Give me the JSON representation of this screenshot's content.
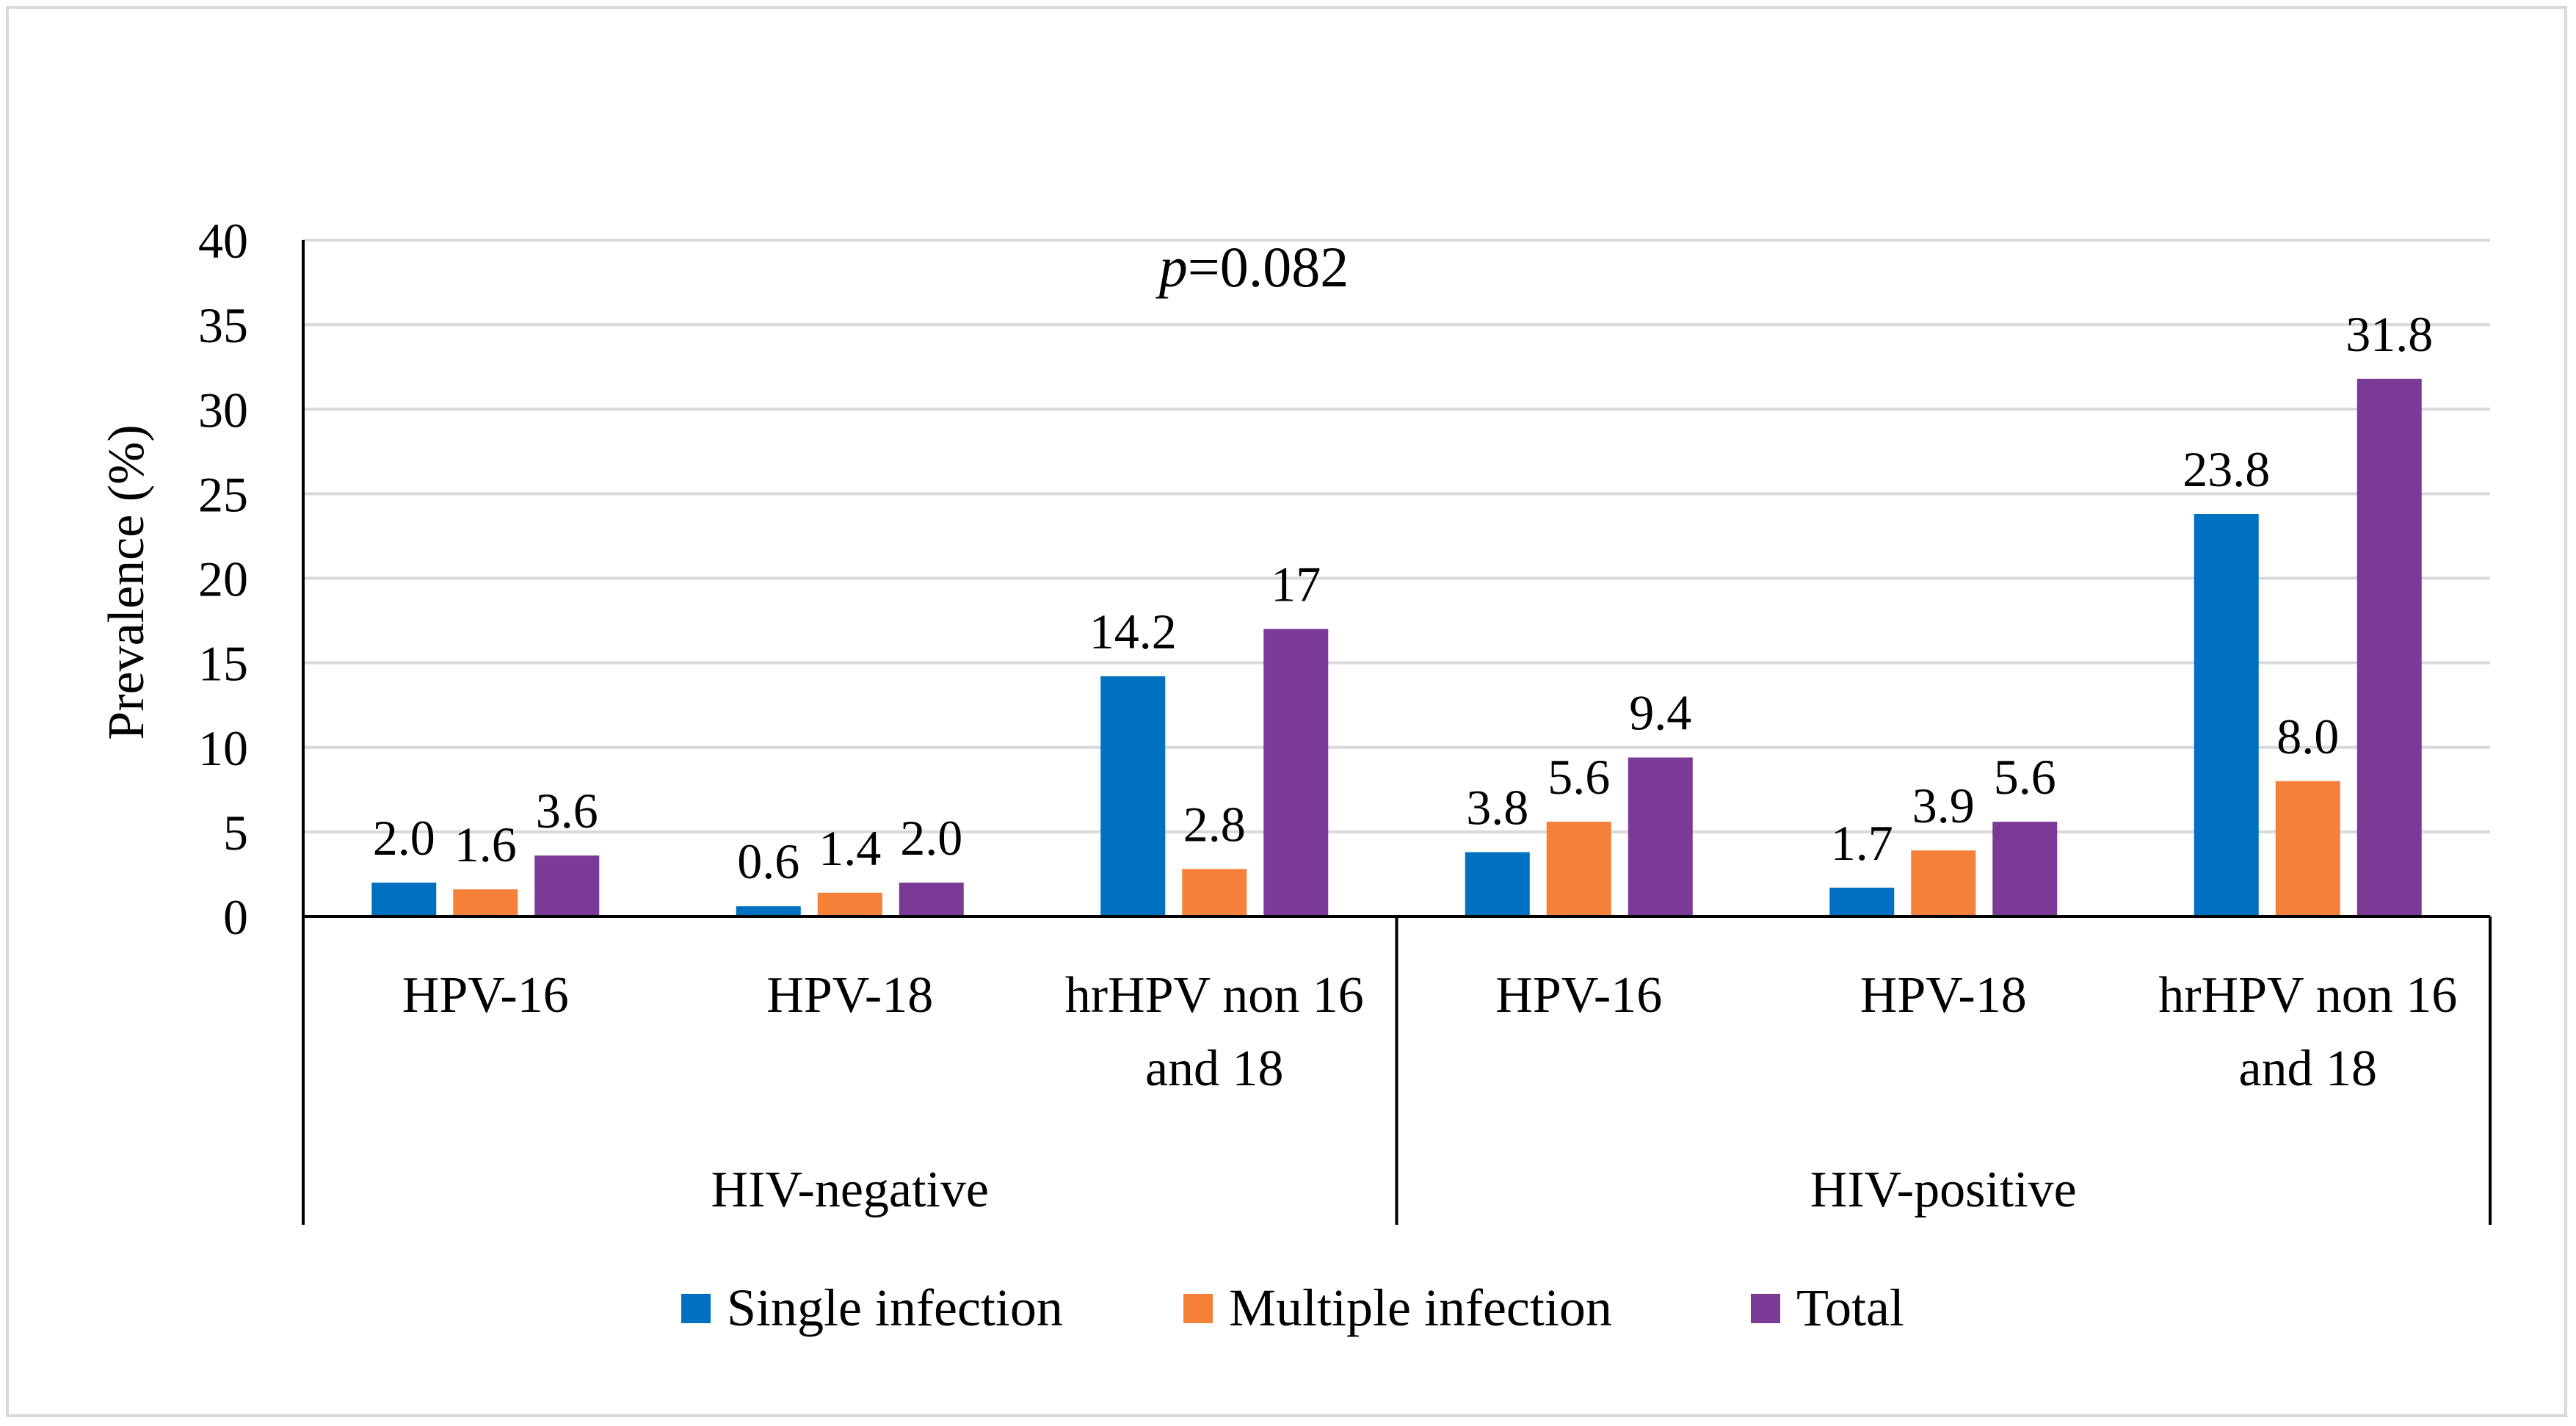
{
  "chart_data": {
    "type": "bar",
    "title": "",
    "annotation": {
      "italic": "p",
      "rest": "=0.082"
    },
    "ylabel": "Prevalence (%)",
    "xlabel": "",
    "ylim": [
      0,
      40
    ],
    "yticks": [
      "0",
      "5",
      "10",
      "15",
      "20",
      "25",
      "30",
      "35",
      "40"
    ],
    "grid": true,
    "legend_position": "bottom",
    "groups": [
      {
        "name": "HIV-negative",
        "categories": [
          {
            "lines": [
              "HPV-16"
            ]
          },
          {
            "lines": [
              "HPV-18"
            ]
          },
          {
            "lines": [
              "hrHPV non 16",
              "and 18"
            ]
          }
        ]
      },
      {
        "name": "HIV-positive",
        "categories": [
          {
            "lines": [
              "HPV-16"
            ]
          },
          {
            "lines": [
              "HPV-18"
            ]
          },
          {
            "lines": [
              "hrHPV non 16",
              "and 18"
            ]
          }
        ]
      }
    ],
    "series": [
      {
        "name": "Single infection",
        "color": "#0070C0",
        "values": [
          2.0,
          0.6,
          14.2,
          3.8,
          1.7,
          23.8
        ],
        "labels": [
          "2.0",
          "0.6",
          "14.2",
          "3.8",
          "1.7",
          "23.8"
        ]
      },
      {
        "name": "Multiple infection",
        "color": "#F4803A",
        "values": [
          1.6,
          1.4,
          2.8,
          5.6,
          3.9,
          8.0
        ],
        "labels": [
          "1.6",
          "1.4",
          "2.8",
          "5.6",
          "3.9",
          "8.0"
        ]
      },
      {
        "name": "Total",
        "color": "#7B3A96",
        "values": [
          3.6,
          2.0,
          17,
          9.4,
          5.6,
          31.8
        ],
        "labels": [
          "3.6",
          "2.0",
          "17",
          "9.4",
          "5.6",
          "31.8"
        ]
      }
    ]
  }
}
